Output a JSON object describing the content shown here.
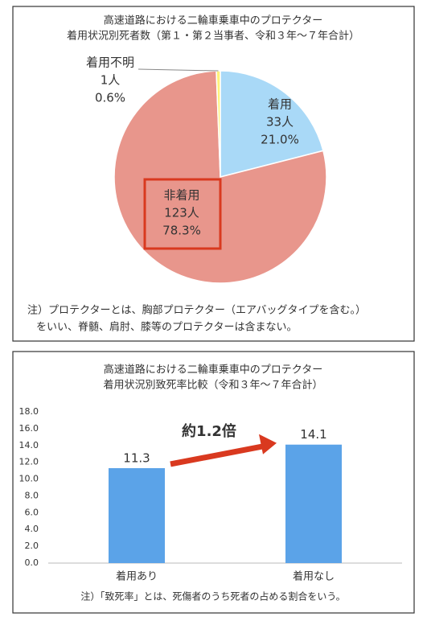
{
  "chart_data": [
    {
      "type": "pie",
      "title": [
        "高速道路における二輪車乗車中のプロテクター",
        "着用状況別死者数（第１・第２当事者、令和３年～７年合計）"
      ],
      "categories": [
        "着用",
        "非着用",
        "着用不明"
      ],
      "values": [
        21.0,
        78.3,
        0.6
      ],
      "value_labels": [
        "21.0%",
        "78.3%",
        "0.6%"
      ],
      "counts": [
        33,
        123,
        1
      ],
      "count_labels": [
        "33人",
        "123人",
        "1人"
      ],
      "colors": [
        "#a9d9f7",
        "#e8968c",
        "#fff27a"
      ],
      "highlight": "非着用",
      "notes": [
        "注）プロテクターとは、胸部プロテクター（エアバッグタイプを含む。）",
        "をいい、脊髄、肩肘、膝等のプロテクターは含まない。"
      ]
    },
    {
      "type": "bar",
      "title": [
        "高速道路における二輪車乗車中のプロテクター",
        "着用状況別致死率比較（令和３年～７年合計）"
      ],
      "categories": [
        "着用あり",
        "着用なし"
      ],
      "values": [
        11.3,
        14.1
      ],
      "color": "#5ba3e8",
      "ylim": [
        0,
        18
      ],
      "yticks": [
        {
          "value": 0,
          "label": "0.0"
        },
        {
          "value": 2,
          "label": "2.0"
        },
        {
          "value": 4,
          "label": "4.0"
        },
        {
          "value": 6,
          "label": "6.0"
        },
        {
          "value": 8,
          "label": "8.0"
        },
        {
          "value": 10,
          "label": "10.0"
        },
        {
          "value": 12,
          "label": "12.0"
        },
        {
          "value": 14,
          "label": "14.0"
        },
        {
          "value": 16,
          "label": "16.0"
        },
        {
          "value": 18,
          "label": "18.0"
        }
      ],
      "grid": false,
      "annotation": "約1.2倍",
      "notes": [
        "注）「致死率」とは、死傷者のうち死者の占める割合をいう。"
      ]
    }
  ]
}
